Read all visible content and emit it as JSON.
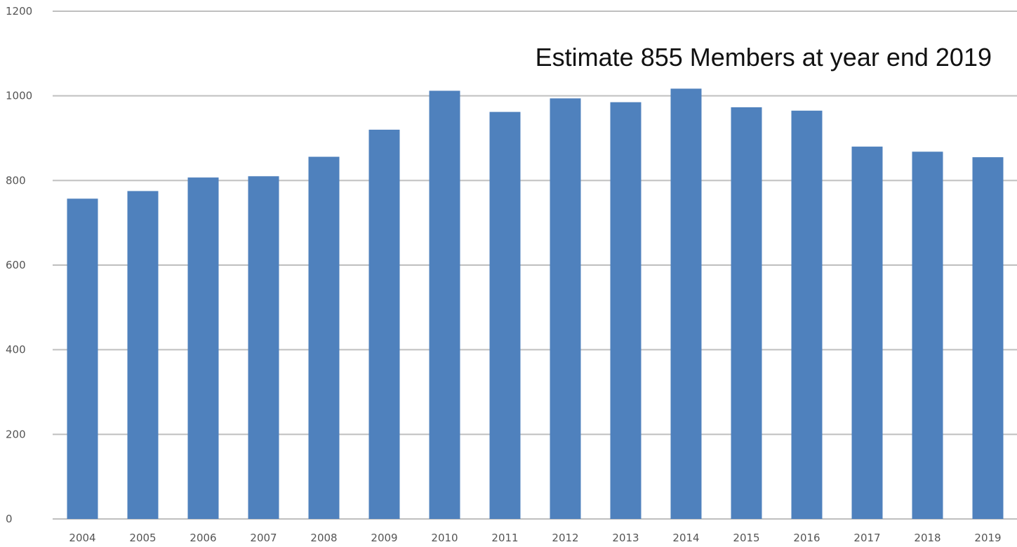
{
  "chart_data": {
    "type": "bar",
    "title": "",
    "xlabel": "",
    "ylabel": "",
    "annotation": "Estimate 855 Members at year end 2019",
    "categories": [
      "2004",
      "2005",
      "2006",
      "2007",
      "2008",
      "2009",
      "2010",
      "2011",
      "2012",
      "2013",
      "2014",
      "2015",
      "2016",
      "2017",
      "2018",
      "2019"
    ],
    "series": [
      {
        "values": [
          757,
          775,
          807,
          810,
          856,
          920,
          1012,
          962,
          994,
          985,
          1017,
          973,
          965,
          880,
          868,
          855
        ],
        "color": "#4f81bd"
      }
    ],
    "ylim": [
      0,
      1200
    ],
    "yticks": [
      "0",
      "200",
      "400",
      "600",
      "800",
      "1000",
      "1200"
    ],
    "grid": true,
    "legend": "none"
  }
}
